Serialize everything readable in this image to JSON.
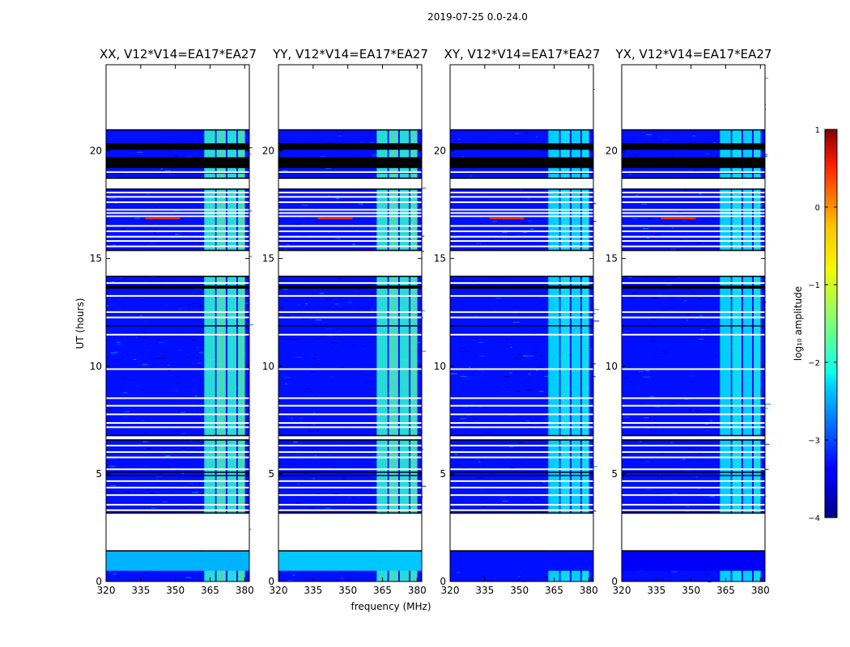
{
  "figure": {
    "suptitle": "2019-07-25 0.0-24.0",
    "xlabel": "frequency (MHz)",
    "ylabel": "UT (hours)",
    "colorbar_label": "log₁₀ amplitude"
  },
  "chart_data": {
    "type": "heatmap",
    "colormap": "jet",
    "panels": [
      {
        "title": "XX, V12*V14=EA17*EA27",
        "low_band_level": -2.5
      },
      {
        "title": "YY, V12*V14=EA17*EA27",
        "low_band_level": -2.4
      },
      {
        "title": "XY, V12*V14=EA17*EA27",
        "low_band_level": -3.3
      },
      {
        "title": "YX, V12*V14=EA17*EA27",
        "low_band_level": -3.4
      }
    ],
    "xlim": [
      320,
      382
    ],
    "x_ticks": [
      320,
      335,
      350,
      365,
      380
    ],
    "ylim": [
      0,
      24
    ],
    "y_ticks": [
      0,
      5,
      10,
      15,
      20
    ],
    "colorbar": {
      "range": [
        -4,
        1
      ],
      "ticks": [
        -4,
        -3,
        -2,
        -1,
        0,
        1
      ]
    },
    "flagged_time_ranges_hours": [
      [
        1.45,
        3.15
      ],
      [
        6.6,
        6.75
      ],
      [
        14.2,
        15.35
      ],
      [
        18.25,
        18.7
      ],
      [
        21.0,
        24.0
      ]
    ],
    "black_time_ranges_hours": [
      [
        20.05,
        20.35
      ],
      [
        19.2,
        19.7
      ],
      [
        13.6,
        13.75
      ]
    ],
    "white_time_lines_hours": [
      3.35,
      3.6,
      4.05,
      4.4,
      4.7,
      5.25,
      5.8,
      6.05,
      6.35,
      7.2,
      7.4,
      7.8,
      8.2,
      8.55,
      9.9,
      11.5,
      12.3,
      12.55,
      13.3,
      13.9,
      15.6,
      15.85,
      16.05,
      16.3,
      16.55,
      17.0,
      17.15,
      17.3,
      17.65,
      17.9,
      18.1,
      18.75,
      19.05
    ],
    "dark_time_lines_hours": [
      4.95,
      5.1,
      11.9,
      19.0
    ],
    "bright_channels_mhz": [
      [
        362.5,
        367.2
      ],
      [
        367.8,
        371.8
      ],
      [
        372.5,
        376.4
      ],
      [
        377.1,
        380.1
      ]
    ],
    "bright_channel_level": -1.9,
    "rfi_spot": {
      "time_hours": 16.9,
      "freq_range_mhz": [
        337,
        352
      ],
      "level": 0.2
    },
    "background_level": -3.3
  }
}
